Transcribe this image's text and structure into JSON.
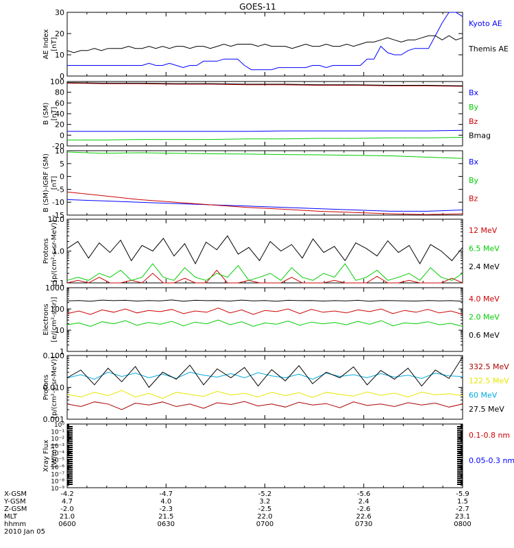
{
  "title": "GOES-11",
  "chart_data": [
    {
      "type": "line",
      "ylabel": "AE Index [nT]",
      "ylim": [
        0,
        30
      ],
      "yticks": [
        "0",
        "10",
        "20",
        "30"
      ],
      "series": [
        {
          "name": "Kyoto AE",
          "color": "#0000ff",
          "values": [
            5,
            5,
            5,
            5,
            5,
            5,
            5,
            5,
            5,
            5,
            5,
            5,
            6,
            5,
            5,
            6,
            5,
            4,
            5,
            5,
            7,
            7,
            7,
            8,
            8,
            8,
            5,
            3,
            3,
            3,
            3,
            4,
            4,
            4,
            4,
            4,
            5,
            5,
            4,
            5,
            5,
            5,
            5,
            5,
            8,
            8,
            14,
            11,
            10,
            10,
            12,
            13,
            13,
            13,
            19,
            25,
            30,
            30,
            28
          ]
        },
        {
          "name": "Themis AE",
          "color": "#000000",
          "values": [
            12,
            11,
            12,
            12,
            13,
            12,
            13,
            13,
            13,
            14,
            13,
            13,
            14,
            13,
            14,
            13,
            14,
            14,
            13,
            14,
            14,
            13,
            14,
            15,
            14,
            15,
            15,
            15,
            14,
            15,
            14,
            14,
            14,
            13,
            14,
            15,
            14,
            14,
            15,
            14,
            14,
            15,
            14,
            15,
            16,
            16,
            17,
            18,
            17,
            16,
            17,
            17,
            18,
            19,
            19,
            17,
            19,
            17,
            18
          ]
        }
      ]
    },
    {
      "type": "line",
      "ylabel": "B (SM) [nT]",
      "ylim": [
        -20,
        100
      ],
      "yticks": [
        "-20",
        "0",
        "20",
        "40",
        "60",
        "80",
        "100"
      ],
      "series": [
        {
          "name": "Bx",
          "color": "#0000ff",
          "values": [
            7,
            7,
            7,
            7,
            7,
            7,
            8,
            8,
            8,
            8,
            8,
            9
          ]
        },
        {
          "name": "By",
          "color": "#00cc00",
          "values": [
            -9,
            -9,
            -8,
            -8,
            -8,
            -7,
            -7,
            -6,
            -6,
            -5,
            -5,
            -4
          ]
        },
        {
          "name": "Bz",
          "color": "#cc0000",
          "values": [
            97,
            96,
            96,
            95,
            95,
            94,
            94,
            93,
            93,
            92,
            92,
            91
          ]
        },
        {
          "name": "Bmag",
          "color": "#000000",
          "values": [
            98,
            97,
            97,
            96,
            96,
            95,
            95,
            94,
            94,
            93,
            93,
            92
          ]
        }
      ]
    },
    {
      "type": "line",
      "ylabel": "B (SM)-IGRF (SM) [nT]",
      "ylim": [
        -15,
        10
      ],
      "yticks": [
        "-15",
        "-10",
        "-5",
        "0",
        "5",
        "10"
      ],
      "series": [
        {
          "name": "Bx",
          "color": "#0000ff",
          "values": [
            -9,
            -9.5,
            -10,
            -10.5,
            -11,
            -11.5,
            -12,
            -12.5,
            -13,
            -13.5,
            -13.5,
            -13
          ]
        },
        {
          "name": "By",
          "color": "#00cc00",
          "values": [
            9.5,
            9,
            9.2,
            9,
            8.8,
            8.7,
            8.5,
            8.4,
            8.2,
            8,
            7.5,
            7
          ]
        },
        {
          "name": "Bz",
          "color": "#cc0000",
          "values": [
            -6,
            -7.5,
            -9,
            -10,
            -11,
            -12,
            -12.7,
            -13.5,
            -14,
            -14.5,
            -14.8,
            -14.5
          ]
        }
      ]
    },
    {
      "type": "line",
      "scale": "log",
      "ylabel": "Protons [p/(cm²-s-sr-MeV)]",
      "ylim": [
        0.1,
        10
      ],
      "yticks": [
        "0.1",
        "1.0",
        "10.0"
      ],
      "series": [
        {
          "name": "12 MeV",
          "color": "#cc0000",
          "values": [
            0.1,
            0.12,
            0.1,
            0.15,
            0.1,
            0.1,
            0.12,
            0.1,
            0.2,
            0.1,
            0.1,
            0.14,
            0.1,
            0.1,
            0.25,
            0.1,
            0.1,
            0.12,
            0.1,
            0.1,
            0.1,
            0.15,
            0.1,
            0.1,
            0.1,
            0.12,
            0.1,
            0.1,
            0.1,
            0.16,
            0.1,
            0.1,
            0.12,
            0.1,
            0.1,
            0.1,
            0.14,
            0.1
          ]
        },
        {
          "name": "6.5 MeV",
          "color": "#00cc00",
          "values": [
            0.12,
            0.15,
            0.12,
            0.2,
            0.15,
            0.25,
            0.12,
            0.15,
            0.4,
            0.15,
            0.12,
            0.3,
            0.15,
            0.12,
            0.2,
            0.15,
            0.35,
            0.12,
            0.15,
            0.2,
            0.12,
            0.3,
            0.15,
            0.12,
            0.2,
            0.15,
            0.4,
            0.12,
            0.15,
            0.25,
            0.12,
            0.15,
            0.2,
            0.12,
            0.3,
            0.15,
            0.12,
            0.2
          ]
        },
        {
          "name": "2.4 MeV",
          "color": "#000000",
          "values": [
            1.2,
            2,
            0.6,
            1.8,
            0.9,
            2.2,
            0.5,
            1.5,
            1.0,
            2.5,
            0.7,
            1.7,
            0.4,
            1.9,
            1.1,
            3,
            0.8,
            1.3,
            0.5,
            2,
            1.0,
            1.6,
            0.6,
            2.4,
            0.9,
            1.4,
            0.5,
            1.8,
            1.2,
            0.7,
            2.1,
            0.9,
            1.5,
            0.4,
            1.6,
            1.0,
            0.5,
            1.3
          ]
        }
      ]
    },
    {
      "type": "line",
      "scale": "log",
      "ylabel": "Electrons [e/(cm²-s-sr)]",
      "ylim": [
        1,
        1000
      ],
      "yticks": [
        "1",
        "10",
        "100",
        "1000"
      ],
      "series": [
        {
          "name": "4.0 MeV",
          "color": "#cc0000",
          "values": [
            60,
            80,
            55,
            90,
            70,
            100,
            65,
            85,
            75,
            95,
            60,
            80,
            70,
            110,
            65,
            90,
            55,
            85,
            75,
            100,
            60,
            95,
            70,
            80,
            65,
            90,
            75,
            100,
            60,
            85,
            70,
            95,
            65,
            80,
            55
          ]
        },
        {
          "name": "2.0 MeV",
          "color": "#00cc00",
          "values": [
            18,
            22,
            15,
            25,
            20,
            28,
            17,
            23,
            19,
            26,
            16,
            24,
            20,
            30,
            18,
            25,
            15,
            22,
            19,
            27,
            17,
            24,
            20,
            23,
            18,
            26,
            19,
            28,
            16,
            22,
            20,
            25,
            18,
            21,
            15
          ]
        },
        {
          "name": "0.6 MeV",
          "color": "#000000",
          "values": [
            240,
            250,
            230,
            260,
            245,
            255,
            235,
            250,
            240,
            265,
            230,
            255,
            245,
            250,
            235,
            260,
            240,
            250,
            230,
            255,
            245,
            250,
            235,
            245,
            240,
            255,
            230,
            250,
            245,
            240,
            235,
            250,
            240,
            245,
            230
          ]
        }
      ]
    },
    {
      "type": "line",
      "scale": "log",
      "ylabel": "Protons [p/(cm²-s-sr-MeV)]",
      "ylim": [
        0.001,
        0.1
      ],
      "yticks": [
        "0.001",
        "0.010",
        "0.100"
      ],
      "series": [
        {
          "name": "332.5 MeV",
          "color": "#aa0000",
          "values": [
            0.003,
            0.0025,
            0.0035,
            0.003,
            0.002,
            0.0032,
            0.0028,
            0.0035,
            0.0025,
            0.003,
            0.0022,
            0.0033,
            0.0029,
            0.0036,
            0.0026,
            0.003,
            0.0024,
            0.0034,
            0.0028,
            0.0031,
            0.0023,
            0.0035,
            0.0027,
            0.003,
            0.0025,
            0.0033,
            0.0028,
            0.0032,
            0.0024,
            0.003
          ]
        },
        {
          "name": "122.5 MeV",
          "color": "#e6e600",
          "values": [
            0.006,
            0.005,
            0.007,
            0.0055,
            0.008,
            0.005,
            0.0065,
            0.0045,
            0.007,
            0.006,
            0.0052,
            0.0075,
            0.0058,
            0.0065,
            0.005,
            0.007,
            0.0055,
            0.0068,
            0.0048,
            0.007,
            0.006,
            0.0053,
            0.0072,
            0.0056,
            0.0066,
            0.005,
            0.0071,
            0.0058,
            0.0063,
            0.0055
          ]
        },
        {
          "name": "60 MeV",
          "color": "#00aadd",
          "values": [
            0.02,
            0.025,
            0.018,
            0.03,
            0.022,
            0.028,
            0.02,
            0.026,
            0.019,
            0.03,
            0.024,
            0.021,
            0.027,
            0.02,
            0.029,
            0.023,
            0.02,
            0.026,
            0.018,
            0.028,
            0.022,
            0.025,
            0.02,
            0.027,
            0.021,
            0.024,
            0.019,
            0.028,
            0.023,
            0.022
          ]
        },
        {
          "name": "27.5 MeV",
          "color": "#000000",
          "values": [
            0.02,
            0.035,
            0.012,
            0.04,
            0.015,
            0.045,
            0.01,
            0.03,
            0.018,
            0.05,
            0.012,
            0.038,
            0.02,
            0.042,
            0.011,
            0.036,
            0.016,
            0.048,
            0.013,
            0.03,
            0.02,
            0.044,
            0.012,
            0.034,
            0.018,
            0.04,
            0.011,
            0.035,
            0.019,
            0.09
          ]
        }
      ]
    },
    {
      "type": "line",
      "scale": "log",
      "ylabel": "Xray Flux [W/m²]",
      "ylim": [
        1e-09,
        1
      ],
      "yticks": [
        "10⁻⁹",
        "10⁻⁸",
        "10⁻⁷",
        "10⁻⁶",
        "10⁻⁵",
        "10⁻⁴",
        "10⁻³",
        "10⁻²",
        "10⁻¹",
        "10⁰"
      ],
      "series": [
        {
          "name": "0.1-0.8 nm",
          "color": "#cc0000",
          "values": []
        },
        {
          "name": "0.05-0.3 nm",
          "color": "#0000ff",
          "values": []
        }
      ]
    }
  ],
  "legends": [
    [
      {
        "text": "Kyoto AE",
        "color": "#0000ff"
      },
      {
        "text": "Themis AE",
        "color": "#000000"
      }
    ],
    [
      {
        "text": "Bx",
        "color": "#0000ff"
      },
      {
        "text": "By",
        "color": "#00cc00"
      },
      {
        "text": "Bz",
        "color": "#cc0000"
      },
      {
        "text": "Bmag",
        "color": "#000000"
      }
    ],
    [
      {
        "text": "Bx",
        "color": "#0000ff"
      },
      {
        "text": "By",
        "color": "#00cc00"
      },
      {
        "text": "Bz",
        "color": "#cc0000"
      }
    ],
    [
      {
        "text": "12 MeV",
        "color": "#cc0000"
      },
      {
        "text": "6.5 MeV",
        "color": "#00cc00"
      },
      {
        "text": "2.4 MeV",
        "color": "#000000"
      }
    ],
    [
      {
        "text": "4.0 MeV",
        "color": "#cc0000"
      },
      {
        "text": "2.0 MeV",
        "color": "#00cc00"
      },
      {
        "text": "0.6 MeV",
        "color": "#000000"
      }
    ],
    [
      {
        "text": "332.5 MeV",
        "color": "#aa0000"
      },
      {
        "text": "122.5 MeV",
        "color": "#e6e600"
      },
      {
        "text": "60 MeV",
        "color": "#00aadd"
      },
      {
        "text": "27.5 MeV",
        "color": "#000000"
      }
    ],
    [
      {
        "text": "0.1-0.8 nm",
        "color": "#cc0000"
      },
      {
        "text": "0.05-0.3 nm",
        "color": "#0000ff"
      }
    ]
  ],
  "ylabels": [
    [
      "AE Index",
      "[nT]"
    ],
    [
      "B (SM)",
      "[nT]"
    ],
    [
      "B (SM)-IGRF (SM)",
      "[nT]"
    ],
    [
      "Protons",
      "[p/(cm²-s-sr-MeV)]"
    ],
    [
      "Electrons",
      "[e/(cm²-s-sr)]"
    ],
    [
      "Protons",
      "[p/(cm²-s-sr-MeV)]"
    ],
    [
      "Xray Flux",
      "[W/m²]"
    ]
  ],
  "xaxis": {
    "row_labels": [
      "X-GSM",
      "Y-GSM",
      "Z-GSM",
      "MLT",
      "hhmm",
      "2010 Jan 05"
    ],
    "columns": [
      [
        "-4.2",
        "4.7",
        "-2.0",
        "21.0",
        "0600"
      ],
      [
        "-4.7",
        "4.0",
        "-2.3",
        "21.5",
        "0630"
      ],
      [
        "-5.2",
        "3.2",
        "-2.5",
        "22.0",
        "0700"
      ],
      [
        "-5.6",
        "2.4",
        "-2.6",
        "22.6",
        "0730"
      ],
      [
        "-5.9",
        "1.5",
        "-2.7",
        "23.1",
        "0800"
      ]
    ]
  }
}
